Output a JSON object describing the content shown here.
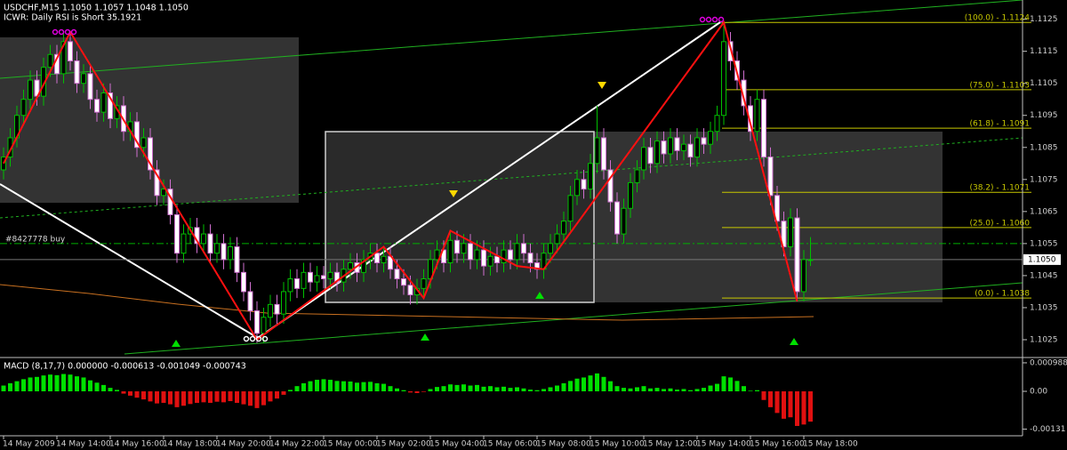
{
  "chart_data": [
    {
      "type": "candlestick",
      "title": "USDCHF,M15  1.1050 1.1057 1.1048 1.1050",
      "subtitle": "ICWR: Daily RSI is Short 35.1921",
      "categories": [
        "14 May 2009",
        null,
        null,
        null,
        null,
        null,
        null,
        null,
        "14 May 14:00",
        null,
        null,
        null,
        null,
        null,
        null,
        null,
        "14 May 16:00",
        null,
        null,
        null,
        null,
        null,
        null,
        null,
        "14 May 18:00",
        null,
        null,
        null,
        null,
        null,
        null,
        null,
        "14 May 20:00",
        null,
        null,
        null,
        null,
        null,
        null,
        null,
        "14 May 22:00",
        null,
        null,
        null,
        null,
        null,
        null,
        null,
        "15 May 00:00",
        null,
        null,
        null,
        null,
        null,
        null,
        null,
        "15 May 02:00",
        null,
        null,
        null,
        null,
        null,
        null,
        null,
        "15 May 04:00",
        null,
        null,
        null,
        null,
        null,
        null,
        null,
        "15 May 06:00",
        null,
        null,
        null,
        null,
        null,
        null,
        null,
        "15 May 08:00",
        null,
        null,
        null,
        null,
        null,
        null,
        null,
        "15 May 10:00",
        null,
        null,
        null,
        null,
        null,
        null,
        null,
        "15 May 12:00",
        null,
        null,
        null,
        null,
        null,
        null,
        null,
        "15 May 14:00",
        null,
        null,
        null,
        null,
        null,
        null,
        null,
        "15 May 16:00",
        null,
        null,
        null,
        null,
        null,
        null,
        null,
        "15 May 18:00",
        null
      ],
      "open": [
        1.1078,
        1.1082,
        1.1088,
        1.1095,
        1.11,
        1.1106,
        1.1101,
        1.111,
        1.1114,
        1.1108,
        1.1118,
        1.1112,
        1.1105,
        1.1108,
        1.11,
        1.1096,
        1.1102,
        1.1094,
        1.1098,
        1.109,
        1.1093,
        1.1085,
        1.1088,
        1.1078,
        1.107,
        1.1072,
        1.1064,
        1.1052,
        1.1058,
        1.106,
        1.1055,
        1.1058,
        1.1052,
        1.1055,
        1.105,
        1.1054,
        1.1046,
        1.104,
        1.1034,
        1.1027,
        1.1032,
        1.1036,
        1.1033,
        1.104,
        1.1044,
        1.1041,
        1.1046,
        1.1043,
        1.1045,
        1.1044,
        1.1046,
        1.1043,
        1.1047,
        1.1049,
        1.1046,
        1.105,
        1.1052,
        1.1049,
        1.1051,
        1.1047,
        1.1044,
        1.1042,
        1.1039,
        1.1041,
        1.1044,
        1.105,
        1.1053,
        1.1049,
        1.1056,
        1.1052,
        1.1055,
        1.105,
        1.1053,
        1.1048,
        1.1051,
        1.1049,
        1.1053,
        1.105,
        1.1055,
        1.1052,
        1.1049,
        1.1047,
        1.1052,
        1.1055,
        1.1058,
        1.1062,
        1.107,
        1.1075,
        1.1072,
        1.108,
        1.1088,
        1.1078,
        1.1068,
        1.1058,
        1.1066,
        1.1074,
        1.1078,
        1.1085,
        1.108,
        1.1087,
        1.1083,
        1.1088,
        1.1084,
        1.1086,
        1.1082,
        1.1088,
        1.1086,
        1.109,
        1.1095,
        1.1118,
        1.1112,
        1.1106,
        1.1098,
        1.109,
        1.11,
        1.1082,
        1.107,
        1.1062,
        1.1054,
        1.1063,
        1.104,
        1.105
      ],
      "high": [
        1.1085,
        1.1091,
        1.1098,
        1.1103,
        1.1109,
        1.1109,
        1.1113,
        1.1117,
        1.1117,
        1.1121,
        1.1121,
        1.1115,
        1.1111,
        1.1111,
        1.1103,
        1.1105,
        1.1105,
        1.1101,
        1.1101,
        1.1096,
        1.1096,
        1.1091,
        1.1091,
        1.1081,
        1.1075,
        1.1075,
        1.1067,
        1.1061,
        1.1063,
        1.1063,
        1.1061,
        1.1061,
        1.1058,
        1.1058,
        1.1057,
        1.1057,
        1.1049,
        1.1043,
        1.1037,
        1.1035,
        1.1039,
        1.1039,
        1.1043,
        1.1047,
        1.1047,
        1.1049,
        1.1049,
        1.1048,
        1.1048,
        1.1049,
        1.1049,
        1.105,
        1.1052,
        1.1052,
        1.1053,
        1.1055,
        1.1055,
        1.1054,
        1.1054,
        1.105,
        1.1047,
        1.1045,
        1.1044,
        1.1047,
        1.1053,
        1.1056,
        1.1056,
        1.1059,
        1.1059,
        1.1058,
        1.1058,
        1.1056,
        1.1056,
        1.1054,
        1.1054,
        1.1056,
        1.1056,
        1.1058,
        1.1058,
        1.1055,
        1.1052,
        1.1055,
        1.1058,
        1.1061,
        1.1065,
        1.1073,
        1.1078,
        1.1078,
        1.1083,
        1.1098,
        1.1091,
        1.1081,
        1.1071,
        1.1069,
        1.1077,
        1.1081,
        1.1088,
        1.1088,
        1.109,
        1.109,
        1.1091,
        1.1091,
        1.1089,
        1.1089,
        1.1091,
        1.1091,
        1.1093,
        1.1098,
        1.1124,
        1.1121,
        1.1115,
        1.1109,
        1.1101,
        1.1103,
        1.1103,
        1.1085,
        1.1073,
        1.1065,
        1.1066,
        1.1066,
        1.1053,
        1.1057
      ],
      "low": [
        1.1075,
        1.1079,
        1.1085,
        1.1092,
        1.1097,
        1.1098,
        1.1098,
        1.1107,
        1.1105,
        1.1105,
        1.1109,
        1.1102,
        1.1102,
        1.1097,
        1.1093,
        1.1093,
        1.1091,
        1.1091,
        1.1087,
        1.1087,
        1.1082,
        1.1082,
        1.1075,
        1.1067,
        1.1067,
        1.1061,
        1.1049,
        1.1049,
        1.1055,
        1.1052,
        1.1052,
        1.1049,
        1.1049,
        1.1047,
        1.1047,
        1.1043,
        1.1037,
        1.1031,
        1.1024,
        1.1024,
        1.1029,
        1.103,
        1.103,
        1.1037,
        1.1038,
        1.1038,
        1.104,
        1.104,
        1.1041,
        1.1041,
        1.104,
        1.104,
        1.1044,
        1.1043,
        1.1043,
        1.1047,
        1.1046,
        1.1046,
        1.1044,
        1.1041,
        1.1039,
        1.1036,
        1.1036,
        1.1038,
        1.1041,
        1.1047,
        1.1046,
        1.1046,
        1.1049,
        1.1049,
        1.1047,
        1.1047,
        1.1045,
        1.1045,
        1.1046,
        1.1046,
        1.1047,
        1.1047,
        1.1049,
        1.1046,
        1.1044,
        1.1044,
        1.1049,
        1.1052,
        1.1055,
        1.1059,
        1.1067,
        1.1069,
        1.1069,
        1.1077,
        1.1075,
        1.1065,
        1.1055,
        1.1055,
        1.1063,
        1.1071,
        1.1075,
        1.1077,
        1.1077,
        1.108,
        1.108,
        1.1081,
        1.1081,
        1.1079,
        1.1079,
        1.1083,
        1.1083,
        1.1087,
        1.1092,
        1.1109,
        1.1103,
        1.1095,
        1.1087,
        1.1087,
        1.1079,
        1.1067,
        1.1059,
        1.1051,
        1.1051,
        1.1037,
        1.1037,
        1.1048
      ],
      "close": [
        1.1082,
        1.1088,
        1.1095,
        1.11,
        1.1106,
        1.1101,
        1.111,
        1.1114,
        1.1108,
        1.1118,
        1.1112,
        1.1105,
        1.1108,
        1.11,
        1.1096,
        1.1102,
        1.1094,
        1.1098,
        1.109,
        1.1093,
        1.1085,
        1.1088,
        1.1078,
        1.107,
        1.1072,
        1.1064,
        1.1052,
        1.1058,
        1.106,
        1.1055,
        1.1058,
        1.1052,
        1.1055,
        1.105,
        1.1054,
        1.1046,
        1.104,
        1.1034,
        1.1027,
        1.1032,
        1.1036,
        1.1033,
        1.104,
        1.1044,
        1.1041,
        1.1046,
        1.1043,
        1.1045,
        1.1044,
        1.1046,
        1.1043,
        1.1047,
        1.1049,
        1.1046,
        1.105,
        1.1052,
        1.1049,
        1.1051,
        1.1047,
        1.1044,
        1.1042,
        1.1039,
        1.1041,
        1.1044,
        1.105,
        1.1053,
        1.1049,
        1.1056,
        1.1052,
        1.1055,
        1.105,
        1.1053,
        1.1048,
        1.1051,
        1.1049,
        1.1053,
        1.105,
        1.1055,
        1.1052,
        1.1049,
        1.1047,
        1.1052,
        1.1055,
        1.1058,
        1.1062,
        1.107,
        1.1075,
        1.1072,
        1.108,
        1.1088,
        1.1078,
        1.1068,
        1.1058,
        1.1066,
        1.1074,
        1.1078,
        1.1085,
        1.108,
        1.1087,
        1.1083,
        1.1088,
        1.1084,
        1.1086,
        1.1082,
        1.1088,
        1.1086,
        1.109,
        1.1095,
        1.1118,
        1.1112,
        1.1106,
        1.1098,
        1.109,
        1.11,
        1.1082,
        1.107,
        1.1062,
        1.1054,
        1.1063,
        1.104,
        1.105,
        1.105
      ],
      "up_color": "#00c000",
      "down_color": "#d070d0",
      "ylim": [
        1.102,
        1.1131
      ],
      "yticks": [
        1.1025,
        1.1035,
        1.1045,
        1.1055,
        1.1065,
        1.1075,
        1.1085,
        1.1095,
        1.1105,
        1.1115,
        1.1125
      ],
      "current_price": {
        "value": 1.105,
        "label": "1.1050"
      },
      "order": {
        "value": 1.1055,
        "label": "#8427778 buy",
        "color": "#00b000"
      },
      "zigzag": {
        "x": [
          0,
          10,
          38,
          57,
          63,
          67,
          77,
          81,
          108,
          119
        ],
        "values": [
          1.108,
          1.1121,
          1.1025,
          1.1054,
          1.1038,
          1.1059,
          1.1048,
          1.1047,
          1.1124,
          1.1037
        ],
        "color": "#ff1010"
      },
      "fib_color": "#c8c800",
      "fib_levels": [
        {
          "value": 1.1124,
          "label": "(100.0) - 1.1124"
        },
        {
          "value": 1.1103,
          "label": "(75.0) - 1.1103"
        },
        {
          "value": 1.1091,
          "label": "(61.8) - 1.1091"
        },
        {
          "value": 1.1071,
          "label": "(38.2) - 1.1071"
        },
        {
          "value": 1.106,
          "label": "(25.0) - 1.1060"
        },
        {
          "value": 1.1038,
          "label": "(0.0) - 1.1038"
        }
      ]
    },
    {
      "type": "histogram",
      "title": "MACD (8,17,7) 0.000000 -0.000613 -0.001049 -0.000743",
      "values": [
        0.0002,
        0.00028,
        0.00035,
        0.00042,
        0.00048,
        0.0005,
        0.00055,
        0.00058,
        0.00056,
        0.0006,
        0.00058,
        0.00052,
        0.00048,
        0.00038,
        0.0003,
        0.00022,
        0.00012,
        5e-05,
        -8e-05,
        -0.00015,
        -0.00022,
        -0.00028,
        -0.00035,
        -0.00042,
        -0.0004,
        -0.00045,
        -0.00055,
        -0.0005,
        -0.00044,
        -0.0004,
        -0.00038,
        -0.0004,
        -0.00036,
        -0.00038,
        -0.00034,
        -0.0004,
        -0.00045,
        -0.0005,
        -0.00058,
        -0.00048,
        -0.00035,
        -0.00025,
        -0.00012,
        5e-05,
        0.00018,
        0.00028,
        0.00035,
        0.0004,
        0.00042,
        0.0004,
        0.00036,
        0.00035,
        0.00034,
        0.0003,
        0.00032,
        0.00033,
        0.00028,
        0.00026,
        0.00018,
        0.0001,
        4e-05,
        -4e-05,
        -6e-05,
        -2e-05,
        8e-05,
        0.00015,
        0.00018,
        0.00024,
        0.00022,
        0.00024,
        0.0002,
        0.00022,
        0.00016,
        0.00018,
        0.00014,
        0.00016,
        0.00012,
        0.00014,
        0.0001,
        6e-05,
        4e-05,
        8e-05,
        0.00014,
        0.0002,
        0.00028,
        0.00036,
        0.00044,
        0.00048,
        0.00055,
        0.00062,
        0.0005,
        0.00035,
        0.00018,
        0.00012,
        0.0001,
        0.00014,
        0.00018,
        0.0001,
        0.00012,
        8e-05,
        0.0001,
        6e-05,
        8e-05,
        4e-05,
        8e-05,
        0.00012,
        0.0002,
        0.00026,
        0.00052,
        0.00048,
        0.00036,
        0.00018,
        2e-05,
        4e-05,
        -0.0003,
        -0.00055,
        -0.00075,
        -0.00095,
        -0.0009,
        -0.0012,
        -0.00115,
        -0.00105
      ],
      "up_color": "#00e000",
      "down_color": "#e01010",
      "ylim": [
        -0.00154,
        0.00111
      ],
      "yticks": [
        0.000988,
        {
          "value": 0,
          "label": "0.00"
        },
        -0.00131
      ]
    }
  ]
}
